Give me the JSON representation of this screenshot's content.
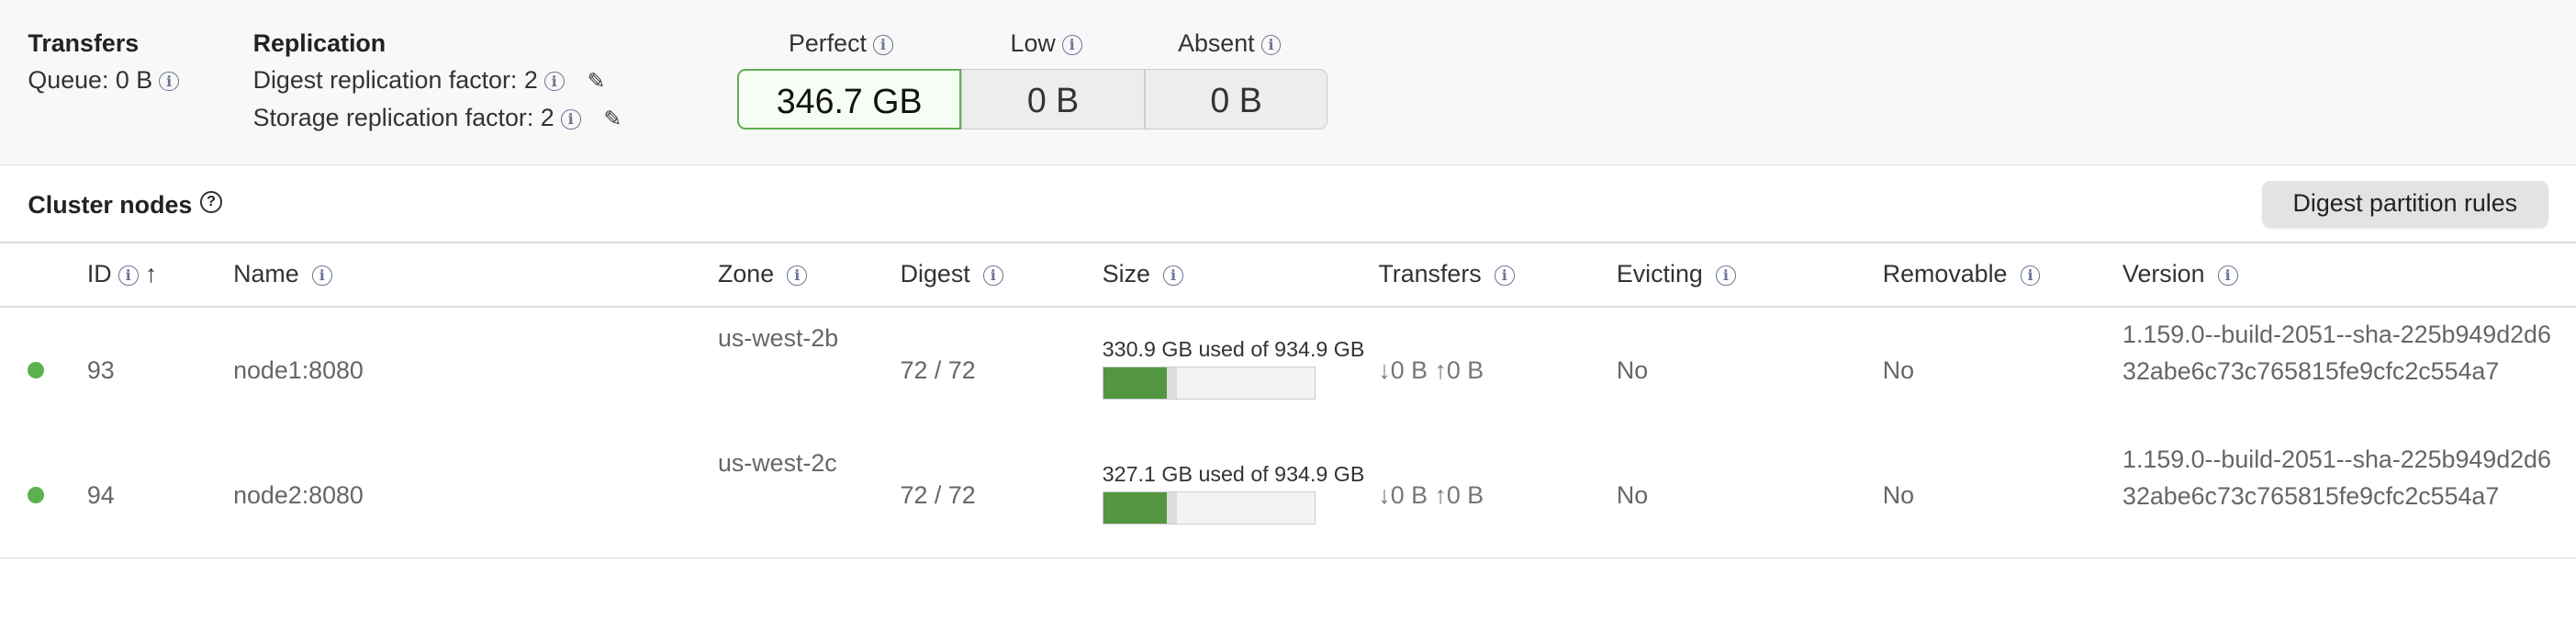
{
  "summary": {
    "transfers": {
      "title": "Transfers",
      "queue": "Queue: 0 B"
    },
    "replication": {
      "title": "Replication",
      "digest": "Digest replication factor: 2",
      "storage": "Storage replication factor: 2"
    },
    "buckets": [
      {
        "label": "Perfect",
        "value": "346.7 GB"
      },
      {
        "label": "Low",
        "value": "0 B"
      },
      {
        "label": "Absent",
        "value": "0 B"
      }
    ]
  },
  "cluster": {
    "title": "Cluster nodes",
    "help_icon": "?",
    "button": "Digest partition rules"
  },
  "table": {
    "headers": [
      "ID",
      "Name",
      "Zone",
      "Digest",
      "Size",
      "Transfers",
      "Evicting",
      "Removable",
      "Version"
    ],
    "sort_icon": "↑",
    "rows": [
      {
        "status_color": "#5cb14f",
        "id": "93",
        "name": "node1:8080",
        "zone": "us-west-2b",
        "digest": "72 / 72",
        "size": "330.9 GB used of 934.9 GB",
        "used_fraction": 0.3,
        "reserved_fraction": 0.35,
        "transfers": "↓0 B ↑0 B",
        "evicting": "No",
        "removable": "No",
        "version": "1.159.0--build-2051--sha-225b949d2d632abe6c73c765815fe9cfc2c554a7"
      },
      {
        "status_color": "#5cb14f",
        "id": "94",
        "name": "node2:8080",
        "zone": "us-west-2c",
        "digest": "72 / 72",
        "size": "327.1 GB used of 934.9 GB",
        "used_fraction": 0.3,
        "reserved_fraction": 0.35,
        "transfers": "↓0 B ↑0 B",
        "evicting": "No",
        "removable": "No",
        "version": "1.159.0--build-2051--sha-225b949d2d632abe6c73c765815fe9cfc2c554a7"
      }
    ]
  },
  "icons": {
    "info": "i",
    "edit": "✎"
  }
}
